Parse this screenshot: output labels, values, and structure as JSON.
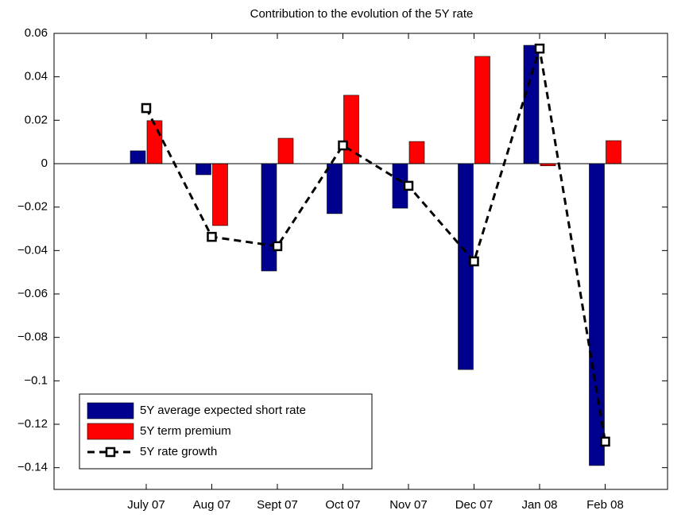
{
  "chart_data": {
    "type": "bar",
    "title": "Contribution to the evolution of the 5Y rate",
    "categories": [
      "July 07",
      "Aug 07",
      "Sept 07",
      "Oct 07",
      "Nov 07",
      "Dec 07",
      "Jan 08",
      "Feb 08"
    ],
    "series": [
      {
        "name": "5Y average expected short rate",
        "color": "#00008f",
        "values": [
          0.0059,
          -0.0051,
          -0.0494,
          -0.023,
          -0.0205,
          -0.0948,
          0.0545,
          -0.139
        ]
      },
      {
        "name": "5Y term premium",
        "color": "#ff0000",
        "values": [
          0.0198,
          -0.0285,
          0.0117,
          0.0315,
          0.0102,
          0.0494,
          -0.001,
          0.0106
        ]
      },
      {
        "name": "5Y rate growth",
        "color": "#000000",
        "type": "line",
        "values": [
          0.0256,
          -0.0337,
          -0.038,
          0.0084,
          -0.0102,
          -0.045,
          0.053,
          -0.128
        ]
      }
    ],
    "ylim": [
      -0.15,
      0.06
    ],
    "yticks": [
      {
        "value": -0.14,
        "label": "−0.14"
      },
      {
        "value": -0.12,
        "label": "−0.12"
      },
      {
        "value": -0.1,
        "label": "−0.1"
      },
      {
        "value": -0.08,
        "label": "−0.08"
      },
      {
        "value": -0.06,
        "label": "−0.06"
      },
      {
        "value": -0.04,
        "label": "−0.04"
      },
      {
        "value": -0.02,
        "label": "−0.02"
      },
      0,
      0.02,
      0.04,
      0.06
    ],
    "legend": "lower-left"
  }
}
